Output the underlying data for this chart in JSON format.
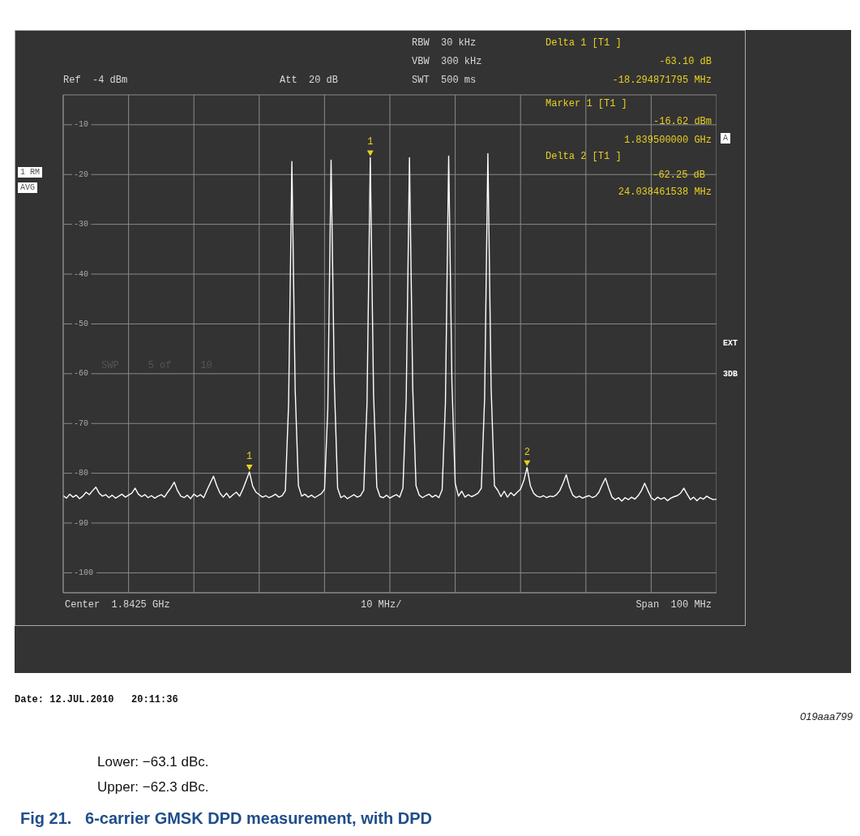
{
  "chart_data": {
    "type": "line",
    "title": "Fig 21.   6-carrier GMSK DPD measurement, with DPD",
    "categories": [
      null,
      null,
      null,
      null,
      null,
      null,
      null,
      null,
      null,
      null,
      null,
      null,
      null,
      null,
      null,
      null,
      null,
      null,
      null,
      null,
      null,
      null,
      null,
      null,
      null,
      null,
      null,
      null,
      null,
      null,
      null,
      null,
      null,
      null,
      null,
      null,
      null,
      null,
      null,
      null,
      null,
      null,
      null,
      null,
      null,
      null,
      null,
      null,
      null,
      null,
      null,
      null,
      null,
      null,
      null,
      null,
      null,
      null,
      null,
      null,
      null,
      null,
      null,
      null,
      null,
      null,
      null,
      null,
      null,
      null,
      null,
      null,
      null,
      null,
      null,
      null,
      null,
      null,
      null,
      null,
      null,
      null,
      null,
      null,
      null,
      null,
      null,
      null,
      null,
      null,
      null,
      null,
      null,
      null,
      null,
      null,
      null,
      null,
      null,
      null,
      null,
      null,
      null,
      null,
      null,
      null,
      null,
      null,
      null,
      null,
      null,
      null,
      null,
      null,
      null,
      null,
      null,
      null,
      null,
      null,
      null,
      null,
      null,
      null,
      null,
      null,
      null,
      null,
      null,
      null,
      null,
      null,
      null,
      null,
      null,
      null,
      null,
      null,
      null,
      null,
      null,
      null,
      null,
      null,
      null,
      null,
      null,
      null,
      null,
      null,
      null,
      null,
      null,
      null,
      null,
      null,
      null,
      null,
      null,
      null,
      null,
      null,
      null,
      null,
      null,
      null,
      null,
      null,
      null,
      null,
      null,
      null,
      null,
      null,
      null,
      null,
      null,
      null,
      null,
      null,
      null,
      null,
      null,
      null,
      null,
      null,
      null,
      null,
      null,
      null,
      null,
      null,
      null,
      null,
      null,
      null,
      null,
      null,
      null,
      null,
      null
    ],
    "ylim": [
      -104,
      -4
    ],
    "yticks": [
      -10,
      -20,
      -30,
      -40,
      -50,
      -60,
      -70,
      -80,
      -90,
      -100
    ],
    "tick_labels": "y",
    "grid": true,
    "legend": false,
    "marker": "none",
    "line_style": "solid",
    "series": [
      {
        "color": "#ffffff",
        "values": [
          -84.5,
          -85.0,
          -84.2,
          -84.8,
          -84.4,
          -85.1,
          -84.6,
          -83.8,
          -84.3,
          -83.5,
          -82.8,
          -84.0,
          -84.6,
          -84.3,
          -84.9,
          -84.4,
          -85.0,
          -84.6,
          -84.2,
          -84.8,
          -84.4,
          -84.0,
          -83.0,
          -84.2,
          -84.7,
          -84.3,
          -84.9,
          -84.5,
          -85.0,
          -84.6,
          -84.3,
          -84.8,
          -83.8,
          -82.9,
          -81.8,
          -83.5,
          -84.6,
          -84.9,
          -84.4,
          -85.1,
          -84.2,
          -84.7,
          -84.3,
          -84.9,
          -83.4,
          -82.0,
          -80.6,
          -82.5,
          -84.0,
          -84.8,
          -84.0,
          -84.9,
          -84.3,
          -83.8,
          -84.6,
          -83.2,
          -81.5,
          -79.72,
          -82.6,
          -83.8,
          -84.3,
          -84.8,
          -84.5,
          -84.9,
          -84.6,
          -84.2,
          -84.8,
          -84.5,
          -83.5,
          -66,
          -17.4,
          -63,
          -82.5,
          -84.6,
          -84.2,
          -84.8,
          -84.4,
          -84.9,
          -84.5,
          -84.1,
          -83.2,
          -67,
          -17.1,
          -62,
          -83.0,
          -84.9,
          -84.5,
          -85.1,
          -84.7,
          -84.3,
          -84.8,
          -84.5,
          -83.4,
          -66,
          -16.62,
          -64,
          -82.8,
          -84.7,
          -84.9,
          -84.4,
          -85.0,
          -84.6,
          -84.3,
          -84.8,
          -83.0,
          -65,
          -16.6,
          -63,
          -82.5,
          -84.4,
          -84.9,
          -84.5,
          -84.2,
          -84.8,
          -84.4,
          -84.9,
          -83.3,
          -66,
          -16.3,
          -62,
          -82.0,
          -84.6,
          -83.6,
          -84.8,
          -84.3,
          -84.7,
          -84.4,
          -84.0,
          -83.0,
          -65,
          -15.8,
          -63,
          -82.5,
          -83.4,
          -84.7,
          -83.6,
          -84.8,
          -83.9,
          -84.5,
          -83.8,
          -83.2,
          -81.5,
          -78.87,
          -82.5,
          -84.0,
          -84.6,
          -84.8,
          -84.5,
          -84.9,
          -84.6,
          -84.7,
          -84.3,
          -83.5,
          -82.0,
          -80.3,
          -82.8,
          -84.4,
          -84.9,
          -84.6,
          -85.0,
          -84.7,
          -84.5,
          -84.9,
          -84.6,
          -83.8,
          -82.3,
          -81.0,
          -83.0,
          -84.8,
          -85.3,
          -84.9,
          -85.6,
          -84.9,
          -85.3,
          -84.8,
          -85.2,
          -84.5,
          -83.5,
          -82.0,
          -83.5,
          -84.9,
          -85.4,
          -84.8,
          -85.2,
          -84.9,
          -85.5,
          -85.0,
          -84.7,
          -84.5,
          -84.0,
          -83.0,
          -84.2,
          -85.3,
          -84.8,
          -85.5,
          -84.9,
          -85.2,
          -84.6,
          -85.0,
          -85.3,
          -85.2
        ]
      }
    ],
    "annotations": [
      "Ref  -4 dBm",
      "Att  20 dB",
      "RBW  30 kHz",
      "VBW  300 kHz",
      "SWT  500 ms",
      "Delta 1 [T1 ]",
      "-63.10 dB",
      "-18.294871795 MHz",
      "Marker 1 [T1 ]",
      "-16.62 dBm",
      "1.839500000 GHz",
      "Delta 2 [T1 ]",
      "-62.25 dB",
      "24.038461538 MHz",
      "1 RM",
      "AVG",
      "A",
      "EXT",
      "3DB",
      "SWP     5 of     10",
      "Center  1.8425 GHz",
      "10 MHz/",
      "Span  100 MHz",
      "Date: 12.JUL.2010   20:11:36",
      "019aaa799",
      "Lower: −63.1 dBc.",
      "Upper: −62.3 dBc.",
      {
        "text": "1",
        "y": -16.62
      },
      {
        "text": "1",
        "y": -79.72
      },
      {
        "text": "2",
        "y": -78.87
      }
    ]
  }
}
